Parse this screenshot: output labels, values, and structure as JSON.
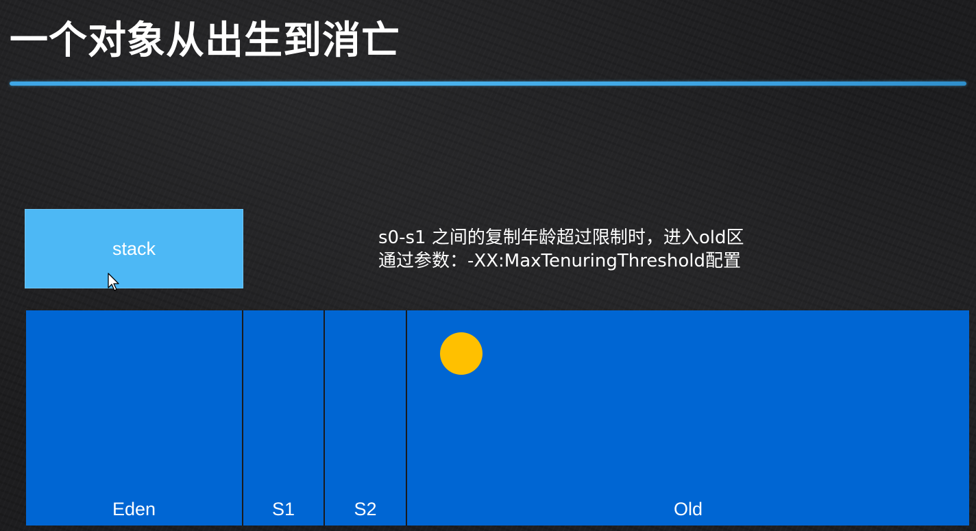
{
  "title": "一个对象从出生到消亡",
  "stack": {
    "label": "stack"
  },
  "note": {
    "line1": "s0-s1 之间的复制年龄超过限制时，进入old区",
    "line2": "通过参数：-XX:MaxTenuringThreshold配置"
  },
  "heap": {
    "regions": [
      {
        "id": "eden",
        "label": "Eden"
      },
      {
        "id": "s1",
        "label": "S1"
      },
      {
        "id": "s2",
        "label": "S2"
      },
      {
        "id": "old",
        "label": "Old"
      }
    ]
  },
  "colors": {
    "heap_region": "#0066d3",
    "stack_box": "#4db8f5",
    "object": "#ffc000",
    "title_rule": "#4cb6f0"
  }
}
